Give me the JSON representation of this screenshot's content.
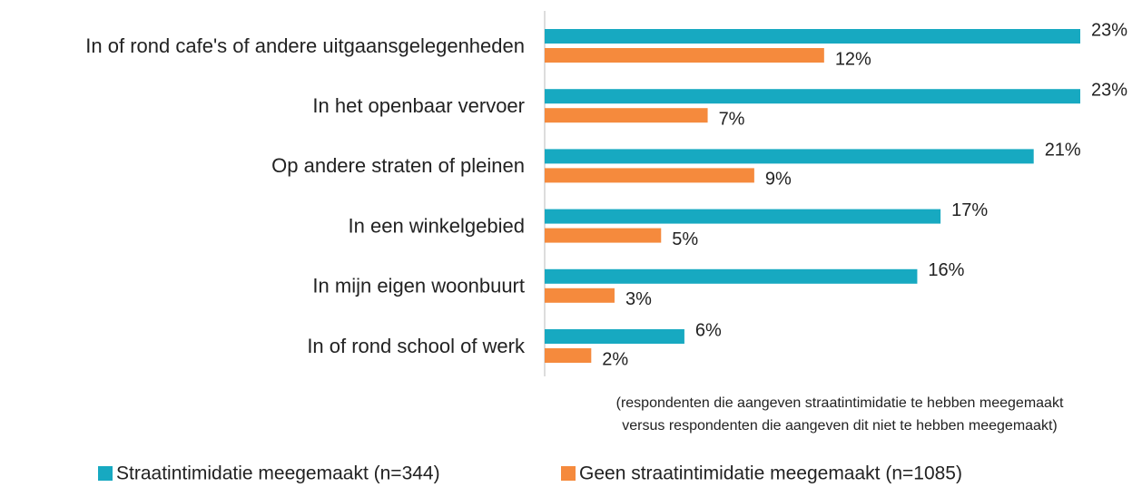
{
  "chart_data": {
    "type": "bar",
    "orientation": "horizontal",
    "categories": [
      "In of rond cafe's of andere uitgaansgelegenheden",
      "In het openbaar vervoer",
      "Op andere straten of pleinen",
      "In een winkelgebied",
      "In mijn eigen woonbuurt",
      "In of rond school of werk"
    ],
    "series": [
      {
        "name": "Straatintimidatie meegemaakt (n=344)",
        "color": "#17a9c1",
        "values": [
          23,
          23,
          21,
          17,
          16,
          6
        ],
        "value_labels": [
          "23%",
          "23%",
          "21%",
          "17%",
          "16%",
          "6%"
        ]
      },
      {
        "name": "Geen straatintimidatie meegemaakt (n=1085)",
        "color": "#f58a3d",
        "values": [
          12,
          7,
          9,
          5,
          3,
          2
        ],
        "value_labels": [
          "12%",
          "7%",
          "9%",
          "5%",
          "3%",
          "2%"
        ]
      }
    ],
    "annotations": [
      "(respondenten die aangeven straatintimidatie te hebben meegemaakt",
      "versus respondenten die aangeven dit niet te hebben meegemaakt)"
    ],
    "legend": "bottom"
  }
}
